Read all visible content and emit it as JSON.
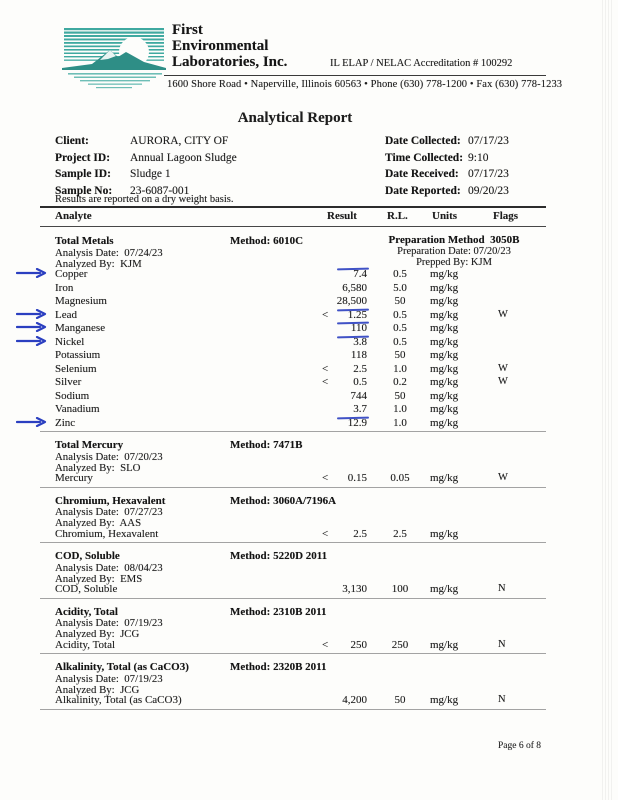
{
  "colors": {
    "annotation_blue": "#2b3fc0",
    "brand_teal": "#3fa9a0",
    "brand_teal_dark": "#2e8e86"
  },
  "header": {
    "company_line1": "First",
    "company_line2": "Environmental",
    "company_line3": "Laboratories, Inc.",
    "accreditation": "IL ELAP / NELAC Accreditation # 100292",
    "address": "1600 Shore Road • Naperville, Illinois 60563 • Phone (630) 778-1200 • Fax (630) 778-1233"
  },
  "title": "Analytical Report",
  "info": {
    "left": [
      {
        "label": "Client:",
        "value": "AURORA, CITY OF"
      },
      {
        "label": "Project ID:",
        "value": "Annual Lagoon Sludge"
      },
      {
        "label": "Sample ID:",
        "value": "Sludge 1"
      },
      {
        "label": "Sample No:",
        "value": "23-6087-001"
      }
    ],
    "right": [
      {
        "label": "Date Collected:",
        "value": "07/17/23"
      },
      {
        "label": "Time Collected:",
        "value": "9:10"
      },
      {
        "label": "Date Received:",
        "value": "07/17/23"
      },
      {
        "label": "Date Reported:",
        "value": "09/20/23"
      }
    ],
    "note": "Results are reported on a dry weight basis."
  },
  "columns": {
    "analyte": "Analyte",
    "result": "Result",
    "rl": "R.L.",
    "units": "Units",
    "flags": "Flags"
  },
  "labels": {
    "method": "Method:",
    "analysis_date": "Analysis Date:",
    "analyzed_by": "Analyzed By:",
    "prep_method": "Preparation Method",
    "prep_date": "Preparation Date:",
    "prepped_by": "Prepped By:"
  },
  "sections": [
    {
      "name": "Total Metals",
      "method": "6010C",
      "analysis_date": "07/24/23",
      "analyzed_by": "KJM",
      "prep_method": "3050B",
      "prep_date": "07/20/23",
      "prepped_by": "KJM",
      "rows": [
        {
          "analyte": "Copper",
          "qualifier": "",
          "result": "7.4",
          "rl": "0.5",
          "units": "mg/kg",
          "flags": "",
          "arrow": true,
          "underline": true
        },
        {
          "analyte": "Iron",
          "qualifier": "",
          "result": "6,580",
          "rl": "5.0",
          "units": "mg/kg",
          "flags": "",
          "arrow": false,
          "underline": false
        },
        {
          "analyte": "Magnesium",
          "qualifier": "",
          "result": "28,500",
          "rl": "50",
          "units": "mg/kg",
          "flags": "",
          "arrow": false,
          "underline": false
        },
        {
          "analyte": "Lead",
          "qualifier": "<",
          "result": "1.25",
          "rl": "0.5",
          "units": "mg/kg",
          "flags": "W",
          "arrow": true,
          "underline": true
        },
        {
          "analyte": "Manganese",
          "qualifier": "",
          "result": "110",
          "rl": "0.5",
          "units": "mg/kg",
          "flags": "",
          "arrow": true,
          "underline": true
        },
        {
          "analyte": "Nickel",
          "qualifier": "",
          "result": "3.8",
          "rl": "0.5",
          "units": "mg/kg",
          "flags": "",
          "arrow": true,
          "underline": true
        },
        {
          "analyte": "Potassium",
          "qualifier": "",
          "result": "118",
          "rl": "50",
          "units": "mg/kg",
          "flags": "",
          "arrow": false,
          "underline": false
        },
        {
          "analyte": "Selenium",
          "qualifier": "<",
          "result": "2.5",
          "rl": "1.0",
          "units": "mg/kg",
          "flags": "W",
          "arrow": false,
          "underline": false
        },
        {
          "analyte": "Silver",
          "qualifier": "<",
          "result": "0.5",
          "rl": "0.2",
          "units": "mg/kg",
          "flags": "W",
          "arrow": false,
          "underline": false
        },
        {
          "analyte": "Sodium",
          "qualifier": "",
          "result": "744",
          "rl": "50",
          "units": "mg/kg",
          "flags": "",
          "arrow": false,
          "underline": false
        },
        {
          "analyte": "Vanadium",
          "qualifier": "",
          "result": "3.7",
          "rl": "1.0",
          "units": "mg/kg",
          "flags": "",
          "arrow": false,
          "underline": false
        },
        {
          "analyte": "Zinc",
          "qualifier": "",
          "result": "12.9",
          "rl": "1.0",
          "units": "mg/kg",
          "flags": "",
          "arrow": true,
          "underline": true
        }
      ]
    },
    {
      "name": "Total Mercury",
      "method": "7471B",
      "analysis_date": "07/20/23",
      "analyzed_by": "SLO",
      "rows": [
        {
          "analyte": "Mercury",
          "qualifier": "<",
          "result": "0.15",
          "rl": "0.05",
          "units": "mg/kg",
          "flags": "W",
          "arrow": false,
          "underline": false
        }
      ]
    },
    {
      "name": "Chromium, Hexavalent",
      "method": "3060A/7196A",
      "analysis_date": "07/27/23",
      "analyzed_by": "AAS",
      "rows": [
        {
          "analyte": "Chromium, Hexavalent",
          "qualifier": "<",
          "result": "2.5",
          "rl": "2.5",
          "units": "mg/kg",
          "flags": "",
          "arrow": false,
          "underline": false
        }
      ]
    },
    {
      "name": "COD, Soluble",
      "method": "5220D  2011",
      "analysis_date": "08/04/23",
      "analyzed_by": "EMS",
      "rows": [
        {
          "analyte": "COD, Soluble",
          "qualifier": "",
          "result": "3,130",
          "rl": "100",
          "units": "mg/kg",
          "flags": "N",
          "arrow": false,
          "underline": false
        }
      ]
    },
    {
      "name": "Acidity, Total",
      "method": "2310B  2011",
      "analysis_date": "07/19/23",
      "analyzed_by": "JCG",
      "rows": [
        {
          "analyte": "Acidity, Total",
          "qualifier": "<",
          "result": "250",
          "rl": "250",
          "units": "mg/kg",
          "flags": "N",
          "arrow": false,
          "underline": false
        }
      ]
    },
    {
      "name": "Alkalinity, Total (as CaCO3)",
      "method": "2320B  2011",
      "analysis_date": "07/19/23",
      "analyzed_by": "JCG",
      "rows": [
        {
          "analyte": "Alkalinity, Total (as CaCO3)",
          "qualifier": "",
          "result": "4,200",
          "rl": "50",
          "units": "mg/kg",
          "flags": "N",
          "arrow": false,
          "underline": false
        }
      ]
    }
  ],
  "footer": {
    "page": "Page  6 of 8"
  }
}
